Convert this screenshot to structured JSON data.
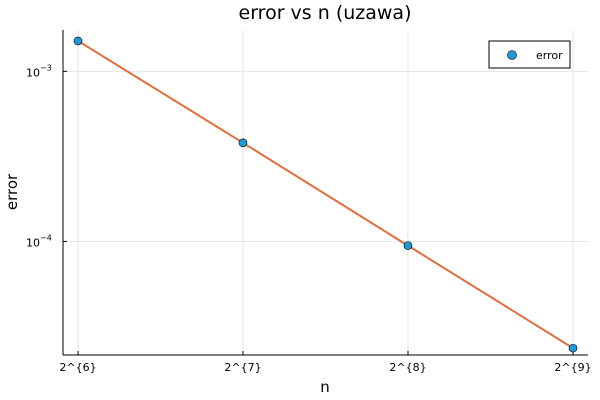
{
  "chart_data": {
    "type": "scatter",
    "title": "error vs n (uzawa)",
    "xlabel": "n",
    "ylabel": "error",
    "x_scale": "log2",
    "y_scale": "log10",
    "x": [
      64,
      128,
      256,
      512
    ],
    "x_tick_labels": [
      "2^{6}",
      "2^{7}",
      "2^{8}",
      "2^{9}"
    ],
    "y_ticks": [
      {
        "base": "10",
        "exponent": "−3",
        "value": 0.001
      },
      {
        "base": "10",
        "exponent": "−4",
        "value": 0.0001
      }
    ],
    "xlim": [
      64,
      512
    ],
    "ylim": [
      2.15e-05,
      0.00175
    ],
    "series": [
      {
        "name": "error",
        "kind": "markers",
        "y": [
          0.00151,
          0.00038,
          9.45e-05,
          2.36e-05
        ],
        "color": "#1f9ad6"
      },
      {
        "name": "",
        "kind": "line",
        "y": [
          0.00151,
          0.00038,
          9.45e-05,
          2.36e-05
        ],
        "color": "#e26f3b"
      }
    ],
    "legend": {
      "placement": "top-right",
      "entries": [
        "error"
      ]
    },
    "grid": true
  }
}
